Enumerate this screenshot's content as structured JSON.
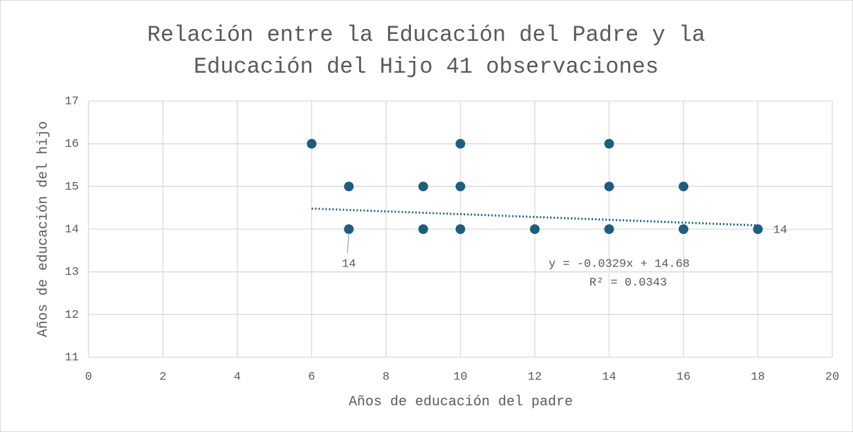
{
  "chart_data": {
    "type": "scatter",
    "title": "Relación entre la Educación del Padre y la Educación del Hijo 41 observaciones",
    "x_label": "Años de educación del padre",
    "y_label": "Años de educación del hijo",
    "x": [
      6,
      7,
      7,
      9,
      9,
      10,
      10,
      10,
      12,
      14,
      14,
      14,
      16,
      16,
      18
    ],
    "values": [
      16,
      15,
      14,
      15,
      14,
      16,
      15,
      14,
      14,
      16,
      15,
      14,
      15,
      14,
      14
    ],
    "value_labels": [
      null,
      null,
      "14",
      null,
      null,
      null,
      null,
      null,
      null,
      null,
      null,
      null,
      null,
      null,
      "14"
    ],
    "color": "#1b5f80",
    "xlim": [
      0,
      20
    ],
    "xticks": [
      0,
      2,
      4,
      6,
      8,
      10,
      12,
      14,
      16,
      18,
      20
    ],
    "ylim": [
      11,
      17
    ],
    "yticks": [
      11,
      12,
      13,
      14,
      15,
      16,
      17
    ],
    "grid": true,
    "trendline": {
      "equation": "y = -0.0329x + 14.68",
      "r_squared": "R² = 0.0343",
      "slope": -0.0329,
      "intercept": 14.68,
      "color": "#1b5f80"
    }
  }
}
